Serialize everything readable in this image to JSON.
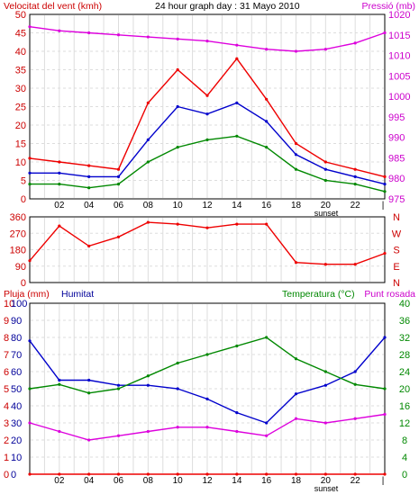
{
  "chart_data": [
    {
      "type": "line",
      "title": "24 hour graph day : 31 Mayo 2010",
      "ylabel": "Velocitat del vent (kmh)",
      "ylabel_right": "Pressió (mb)",
      "ylim": [
        0,
        50
      ],
      "ylim_right": [
        975,
        1020
      ],
      "yticks": [
        0,
        5,
        10,
        15,
        20,
        25,
        30,
        35,
        40,
        45,
        50
      ],
      "yticks_right": [
        975,
        980,
        985,
        990,
        995,
        1000,
        1005,
        1010,
        1015,
        1020
      ],
      "xticks": [
        "02",
        "04",
        "06",
        "08",
        "10",
        "12",
        "14",
        "16",
        "18",
        "20",
        "22",
        "|"
      ],
      "annotation": "sunset",
      "grid": true,
      "x": [
        0,
        2,
        4,
        6,
        8,
        10,
        12,
        14,
        16,
        18,
        20,
        22,
        24
      ],
      "series": [
        {
          "color": "#dd00dd",
          "values": [
            1017,
            1016,
            1015.5,
            1015,
            1014.5,
            1014,
            1013.5,
            1012.5,
            1011.5,
            1011,
            1011.5,
            1013,
            1015.5
          ],
          "axis": "right"
        },
        {
          "color": "#ee0000",
          "values": [
            11,
            10,
            9,
            8,
            26,
            35,
            28,
            38,
            27,
            15,
            10,
            8,
            6
          ]
        },
        {
          "color": "#0000cc",
          "values": [
            7,
            7,
            6,
            6,
            16,
            25,
            23,
            26,
            21,
            12,
            8,
            6,
            4
          ]
        },
        {
          "color": "#008800",
          "values": [
            4,
            4,
            3,
            4,
            10,
            14,
            16,
            17,
            14,
            8,
            5,
            4,
            2
          ]
        }
      ]
    },
    {
      "type": "line",
      "ylabels_left": [
        "0",
        "90",
        "180",
        "270",
        "360"
      ],
      "ylabels_right": [
        "N",
        "E",
        "S",
        "W",
        "N"
      ],
      "ylim": [
        0,
        360
      ],
      "xticks": [
        "02",
        "04",
        "06",
        "08",
        "10",
        "12",
        "14",
        "16",
        "18",
        "20",
        "22",
        "|"
      ],
      "grid": true,
      "x": [
        0,
        2,
        4,
        6,
        8,
        10,
        12,
        14,
        16,
        18,
        20,
        22,
        24
      ],
      "series": [
        {
          "color": "#ee0000",
          "values": [
            120,
            310,
            200,
            250,
            330,
            320,
            300,
            320,
            320,
            110,
            100,
            100,
            160
          ]
        }
      ]
    },
    {
      "type": "line",
      "ylabel": "Pluja (mm)",
      "ylabel_2": "Humitat",
      "ylabel_right": "Temperatura (°C)",
      "ylabel_right_2": "Punt rosada",
      "ylim_rain": [
        0,
        10
      ],
      "yticks_rain": [
        "0",
        "1",
        "2",
        "3",
        "4",
        "5",
        "6",
        "7",
        "8",
        "9",
        "10"
      ],
      "yticks_humidity": [
        "0",
        "10",
        "20",
        "30",
        "40",
        "50",
        "60",
        "70",
        "80",
        "90",
        "100"
      ],
      "yticks_humidity_colored": [
        "10",
        "20",
        "30",
        "40",
        "50",
        "60",
        "70",
        "80",
        "90",
        "100"
      ],
      "yticks_right": [
        "0",
        "4",
        "8",
        "12",
        "16",
        "20",
        "24",
        "28",
        "32",
        "36",
        "40"
      ],
      "xticks": [
        "02",
        "04",
        "06",
        "08",
        "10",
        "12",
        "14",
        "16",
        "18",
        "20",
        "22",
        "|"
      ],
      "annotation": "sunset",
      "grid": true,
      "x": [
        0,
        2,
        4,
        6,
        8,
        10,
        12,
        14,
        16,
        18,
        20,
        22,
        24
      ],
      "series": [
        {
          "color": "#0000cc",
          "values": [
            78,
            55,
            55,
            52,
            52,
            50,
            44,
            36,
            30,
            47,
            52,
            60,
            80
          ],
          "axis": "humidity"
        },
        {
          "color": "#008800",
          "values": [
            20,
            21,
            19,
            20,
            23,
            26,
            28,
            30,
            32,
            27,
            24,
            21,
            20
          ],
          "axis": "right"
        },
        {
          "color": "#dd00dd",
          "values": [
            12,
            10,
            8,
            9,
            10,
            11,
            11,
            10,
            9,
            13,
            12,
            13,
            14
          ],
          "axis": "right"
        },
        {
          "color": "#ee0000",
          "values": [
            0,
            0,
            0,
            0,
            0,
            0,
            0,
            0,
            0,
            0,
            0,
            0,
            0
          ],
          "axis": "rain"
        }
      ]
    }
  ],
  "colors": {
    "frame": "#000000",
    "grid": "#cccccc",
    "rain": "#cc0000",
    "humidity": "#000099",
    "temperature": "#008800",
    "dewpoint": "#dd00dd"
  }
}
